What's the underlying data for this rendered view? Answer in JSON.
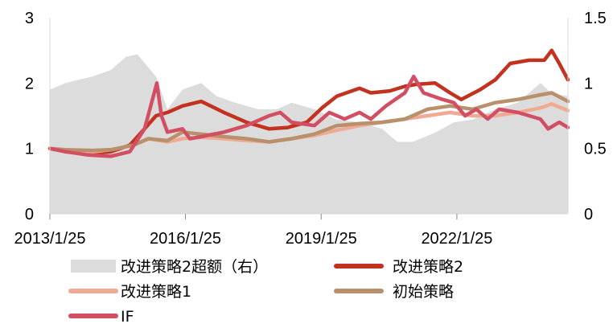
{
  "chart_data": {
    "type": "line",
    "x_ticks": [
      "2013/1/25",
      "2016/1/25",
      "2019/1/25",
      "2022/1/25"
    ],
    "x_range": [
      "2013/1/25",
      "2024/7/10"
    ],
    "left_axis": {
      "ticks": [
        "0",
        "1",
        "2",
        "3"
      ],
      "range": [
        0,
        3
      ]
    },
    "right_axis": {
      "ticks": [
        "0",
        "0.5",
        "1",
        "1.5"
      ],
      "range": [
        0,
        1.5
      ]
    },
    "grid": false,
    "legend_position": "bottom",
    "series": [
      {
        "name": "改进策略2超额（右）",
        "axis": "right",
        "kind": "area",
        "color": "#dcdcdc",
        "points": [
          [
            "2013/1/25",
            0.95
          ],
          [
            "2013/6/1",
            1.0
          ],
          [
            "2014/1/1",
            1.05
          ],
          [
            "2014/6/1",
            1.1
          ],
          [
            "2014/10/1",
            1.2
          ],
          [
            "2015/1/1",
            1.22
          ],
          [
            "2015/6/1",
            1.05
          ],
          [
            "2015/9/1",
            0.8
          ],
          [
            "2016/1/1",
            0.95
          ],
          [
            "2016/6/1",
            1.0
          ],
          [
            "2016/10/1",
            0.9
          ],
          [
            "2017/3/1",
            0.85
          ],
          [
            "2017/9/1",
            0.8
          ],
          [
            "2018/2/1",
            0.8
          ],
          [
            "2018/6/1",
            0.85
          ],
          [
            "2018/12/1",
            0.8
          ],
          [
            "2019/6/1",
            0.72
          ],
          [
            "2019/12/1",
            0.7
          ],
          [
            "2020/6/1",
            0.65
          ],
          [
            "2020/10/1",
            0.55
          ],
          [
            "2021/2/1",
            0.55
          ],
          [
            "2021/8/1",
            0.62
          ],
          [
            "2022/1/1",
            0.7
          ],
          [
            "2022/6/1",
            0.72
          ],
          [
            "2022/12/1",
            0.8
          ],
          [
            "2023/6/1",
            0.85
          ],
          [
            "2023/12/1",
            1.0
          ],
          [
            "2024/3/1",
            0.92
          ],
          [
            "2024/7/10",
            0.9
          ]
        ]
      },
      {
        "name": "改进策略2",
        "axis": "left",
        "kind": "line",
        "color": "#c3311f",
        "points": [
          [
            "2013/1/25",
            1.0
          ],
          [
            "2013/6/1",
            0.95
          ],
          [
            "2013/12/1",
            0.92
          ],
          [
            "2014/6/1",
            0.95
          ],
          [
            "2014/11/1",
            1.05
          ],
          [
            "2015/3/1",
            1.3
          ],
          [
            "2015/6/1",
            1.5
          ],
          [
            "2015/9/1",
            1.55
          ],
          [
            "2016/1/1",
            1.65
          ],
          [
            "2016/6/1",
            1.72
          ],
          [
            "2016/12/1",
            1.55
          ],
          [
            "2017/6/1",
            1.4
          ],
          [
            "2017/12/1",
            1.3
          ],
          [
            "2018/5/1",
            1.32
          ],
          [
            "2018/10/1",
            1.4
          ],
          [
            "2019/2/1",
            1.62
          ],
          [
            "2019/6/1",
            1.8
          ],
          [
            "2019/12/1",
            1.92
          ],
          [
            "2020/3/1",
            1.85
          ],
          [
            "2020/8/1",
            1.88
          ],
          [
            "2020/12/1",
            1.95
          ],
          [
            "2021/3/1",
            1.98
          ],
          [
            "2021/8/1",
            2.0
          ],
          [
            "2021/12/1",
            1.85
          ],
          [
            "2022/3/1",
            1.75
          ],
          [
            "2022/8/1",
            1.9
          ],
          [
            "2022/12/1",
            2.05
          ],
          [
            "2023/4/1",
            2.3
          ],
          [
            "2023/9/1",
            2.35
          ],
          [
            "2024/1/1",
            2.35
          ],
          [
            "2024/3/1",
            2.5
          ],
          [
            "2024/5/1",
            2.3
          ],
          [
            "2024/7/10",
            2.05
          ]
        ]
      },
      {
        "name": "改进策略1",
        "axis": "left",
        "kind": "line",
        "color": "#f0aa94",
        "points": [
          [
            "2013/1/25",
            1.0
          ],
          [
            "2013/6/1",
            0.97
          ],
          [
            "2014/1/1",
            0.95
          ],
          [
            "2014/6/1",
            0.98
          ],
          [
            "2014/12/1",
            1.05
          ],
          [
            "2015/4/1",
            1.15
          ],
          [
            "2015/9/1",
            1.1
          ],
          [
            "2016/1/1",
            1.15
          ],
          [
            "2016/6/1",
            1.17
          ],
          [
            "2016/12/1",
            1.15
          ],
          [
            "2017/6/1",
            1.12
          ],
          [
            "2017/12/1",
            1.1
          ],
          [
            "2018/6/1",
            1.15
          ],
          [
            "2018/12/1",
            1.2
          ],
          [
            "2019/6/1",
            1.28
          ],
          [
            "2019/12/1",
            1.35
          ],
          [
            "2020/6/1",
            1.4
          ],
          [
            "2020/12/1",
            1.45
          ],
          [
            "2021/6/1",
            1.5
          ],
          [
            "2021/12/1",
            1.55
          ],
          [
            "2022/6/1",
            1.5
          ],
          [
            "2022/12/1",
            1.5
          ],
          [
            "2023/6/1",
            1.55
          ],
          [
            "2023/12/1",
            1.62
          ],
          [
            "2024/3/1",
            1.68
          ],
          [
            "2024/7/10",
            1.58
          ]
        ]
      },
      {
        "name": "初始策略",
        "axis": "left",
        "kind": "line",
        "color": "#b8906c",
        "points": [
          [
            "2013/1/25",
            1.0
          ],
          [
            "2013/6/1",
            0.98
          ],
          [
            "2014/1/1",
            0.97
          ],
          [
            "2014/6/1",
            0.98
          ],
          [
            "2014/12/1",
            1.05
          ],
          [
            "2015/4/1",
            1.15
          ],
          [
            "2015/9/1",
            1.12
          ],
          [
            "2016/1/1",
            1.25
          ],
          [
            "2016/6/1",
            1.22
          ],
          [
            "2016/12/1",
            1.18
          ],
          [
            "2017/6/1",
            1.15
          ],
          [
            "2017/12/1",
            1.1
          ],
          [
            "2018/6/1",
            1.15
          ],
          [
            "2018/12/1",
            1.22
          ],
          [
            "2019/6/1",
            1.35
          ],
          [
            "2019/12/1",
            1.38
          ],
          [
            "2020/6/1",
            1.4
          ],
          [
            "2020/12/1",
            1.45
          ],
          [
            "2021/6/1",
            1.6
          ],
          [
            "2021/12/1",
            1.65
          ],
          [
            "2022/6/1",
            1.6
          ],
          [
            "2022/12/1",
            1.7
          ],
          [
            "2023/6/1",
            1.75
          ],
          [
            "2023/12/1",
            1.82
          ],
          [
            "2024/3/1",
            1.85
          ],
          [
            "2024/7/10",
            1.72
          ]
        ]
      },
      {
        "name": "IF",
        "axis": "left",
        "kind": "line",
        "color": "#d24f63",
        "points": [
          [
            "2013/1/25",
            1.0
          ],
          [
            "2013/6/1",
            0.95
          ],
          [
            "2013/12/1",
            0.9
          ],
          [
            "2014/6/1",
            0.88
          ],
          [
            "2014/11/1",
            0.95
          ],
          [
            "2015/3/1",
            1.3
          ],
          [
            "2015/6/8",
            2.0
          ],
          [
            "2015/7/15",
            1.5
          ],
          [
            "2015/9/1",
            1.25
          ],
          [
            "2016/1/1",
            1.3
          ],
          [
            "2016/3/1",
            1.15
          ],
          [
            "2016/6/1",
            1.18
          ],
          [
            "2016/12/1",
            1.25
          ],
          [
            "2017/6/1",
            1.35
          ],
          [
            "2017/12/1",
            1.5
          ],
          [
            "2018/3/1",
            1.55
          ],
          [
            "2018/6/1",
            1.4
          ],
          [
            "2018/12/1",
            1.35
          ],
          [
            "2019/4/1",
            1.55
          ],
          [
            "2019/8/1",
            1.45
          ],
          [
            "2019/12/1",
            1.55
          ],
          [
            "2020/3/1",
            1.45
          ],
          [
            "2020/7/1",
            1.65
          ],
          [
            "2020/12/1",
            1.85
          ],
          [
            "2021/2/10",
            2.1
          ],
          [
            "2021/5/1",
            1.85
          ],
          [
            "2021/10/1",
            1.75
          ],
          [
            "2022/1/1",
            1.7
          ],
          [
            "2022/4/1",
            1.5
          ],
          [
            "2022/7/1",
            1.6
          ],
          [
            "2022/10/1",
            1.45
          ],
          [
            "2023/1/1",
            1.6
          ],
          [
            "2023/6/1",
            1.55
          ],
          [
            "2023/12/1",
            1.45
          ],
          [
            "2024/2/1",
            1.3
          ],
          [
            "2024/5/1",
            1.4
          ],
          [
            "2024/7/10",
            1.32
          ]
        ]
      }
    ]
  }
}
